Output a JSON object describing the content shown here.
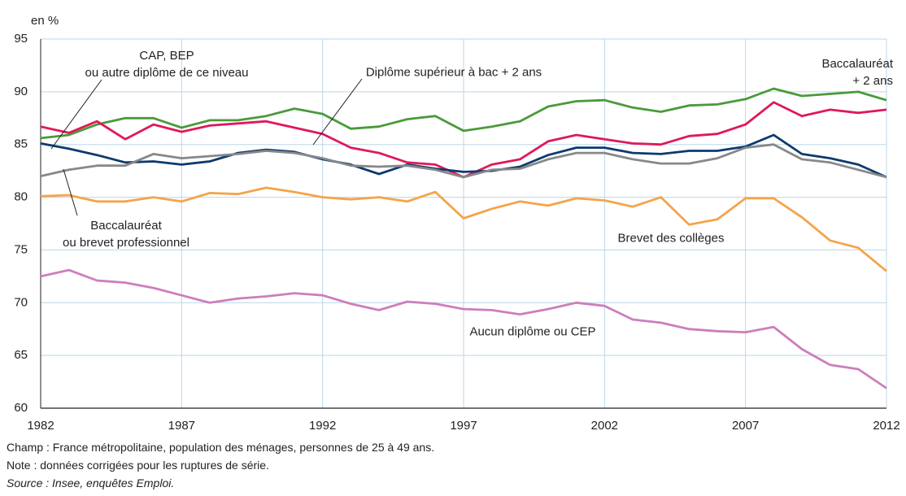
{
  "chart_data": {
    "type": "line",
    "y_unit_label": "en %",
    "x": [
      1982,
      1983,
      1984,
      1985,
      1986,
      1987,
      1988,
      1989,
      1990,
      1991,
      1992,
      1993,
      1994,
      1995,
      1996,
      1997,
      1998,
      1999,
      2000,
      2001,
      2002,
      2003,
      2004,
      2005,
      2006,
      2007,
      2008,
      2009,
      2010,
      2011,
      2012
    ],
    "xlim": [
      1982,
      2012
    ],
    "xticks": [
      1982,
      1987,
      1992,
      1997,
      2002,
      2007,
      2012
    ],
    "ylim": [
      60,
      95
    ],
    "yticks": [
      60,
      65,
      70,
      75,
      80,
      85,
      90,
      95
    ],
    "grid": true,
    "series": [
      {
        "name": "Baccalauréat + 2 ans",
        "color": "#4a9a3a",
        "values": [
          85.6,
          85.9,
          86.9,
          87.5,
          87.5,
          86.6,
          87.3,
          87.3,
          87.7,
          88.4,
          87.9,
          86.5,
          86.7,
          87.4,
          87.7,
          86.3,
          86.7,
          87.2,
          88.6,
          89.1,
          89.2,
          88.5,
          88.1,
          88.7,
          88.8,
          89.3,
          90.3,
          89.6,
          89.8,
          90.0,
          89.2
        ]
      },
      {
        "name": "Diplôme supérieur à bac + 2 ans",
        "color": "#e0185a",
        "values": [
          86.7,
          86.1,
          87.2,
          85.5,
          86.9,
          86.2,
          86.8,
          87.0,
          87.2,
          86.6,
          86.0,
          84.7,
          84.2,
          83.3,
          83.1,
          81.9,
          83.1,
          83.6,
          85.3,
          85.9,
          85.5,
          85.1,
          85.0,
          85.8,
          86.0,
          86.9,
          89.0,
          87.7,
          88.3,
          88.0,
          88.3
        ]
      },
      {
        "name": "Baccalauréat\nou brevet professionnel",
        "color": "#0d3a6e",
        "values": [
          85.1,
          84.6,
          84.0,
          83.3,
          83.4,
          83.1,
          83.4,
          84.2,
          84.5,
          84.3,
          83.6,
          83.1,
          82.2,
          83.1,
          82.7,
          82.4,
          82.5,
          82.9,
          84.0,
          84.7,
          84.7,
          84.2,
          84.1,
          84.4,
          84.4,
          84.8,
          85.9,
          84.1,
          83.7,
          83.1,
          81.9
        ]
      },
      {
        "name": "CAP, BEP\nou autre diplôme de ce niveau",
        "color": "#888888",
        "values": [
          82.0,
          82.6,
          83.0,
          83.0,
          84.1,
          83.7,
          83.9,
          84.1,
          84.4,
          84.2,
          83.7,
          83.0,
          82.9,
          83.0,
          82.6,
          81.9,
          82.6,
          82.7,
          83.6,
          84.2,
          84.2,
          83.6,
          83.2,
          83.2,
          83.7,
          84.7,
          85.0,
          83.6,
          83.3,
          82.6,
          81.9
        ]
      },
      {
        "name": "Brevet des collèges",
        "color": "#f4a44a",
        "values": [
          80.1,
          80.2,
          79.6,
          79.6,
          80.0,
          79.6,
          80.4,
          80.3,
          80.9,
          80.5,
          80.0,
          79.8,
          80.0,
          79.6,
          80.5,
          78.0,
          78.9,
          79.6,
          79.2,
          79.9,
          79.7,
          79.1,
          80.0,
          77.4,
          77.9,
          79.9,
          79.9,
          78.1,
          75.9,
          75.2,
          73.0
        ]
      },
      {
        "name": "Aucun diplôme ou CEP",
        "color": "#cc7ebd",
        "values": [
          72.5,
          73.1,
          72.1,
          71.9,
          71.4,
          70.7,
          70.0,
          70.4,
          70.6,
          70.9,
          70.7,
          69.9,
          69.3,
          70.1,
          69.9,
          69.4,
          69.3,
          68.9,
          69.4,
          70.0,
          69.7,
          68.4,
          68.1,
          67.5,
          67.3,
          67.2,
          67.7,
          65.6,
          64.1,
          63.7,
          61.9
        ]
      }
    ],
    "notes": [
      "Champ : France métropolitaine, population des ménages, personnes de 25 à 49 ans.",
      "Note : données corrigées pour les ruptures de série.",
      "Source : Insee, enquêtes Emploi."
    ]
  }
}
